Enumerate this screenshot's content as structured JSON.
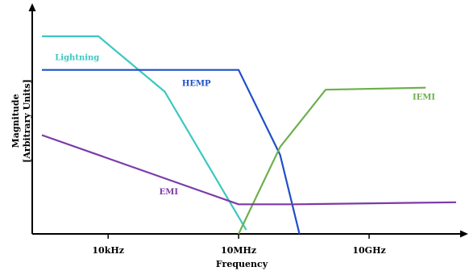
{
  "chart_data": {
    "type": "line",
    "xlabel": "Frequency",
    "ylabel_line1": "Magnitude",
    "ylabel_line2": "[Arbitrary Units]",
    "x_scale": "log",
    "x_ticks": [
      {
        "value": 10000,
        "label": "10kHz"
      },
      {
        "value": 10000000,
        "label": "10MHz"
      },
      {
        "value": 10000000000,
        "label": "10GHz"
      }
    ],
    "xlim": [
      300,
      1000000000000
    ],
    "ylim": [
      0,
      100
    ],
    "grid": false,
    "legend": "none",
    "series": [
      {
        "name": "Lightning",
        "color": "#3cc8c0",
        "points": [
          [
            300,
            100
          ],
          [
            6000,
            100
          ],
          [
            200000,
            72
          ],
          [
            15000000,
            2
          ]
        ],
        "label_at": [
          600,
          88
        ]
      },
      {
        "name": "HEMP",
        "color": "#1f4fc8",
        "points": [
          [
            300,
            83
          ],
          [
            10000000,
            83
          ],
          [
            90000000,
            40
          ],
          [
            250000000,
            0
          ]
        ],
        "label_at": [
          500000,
          75
        ]
      },
      {
        "name": "IEMI",
        "color": "#6cb04c",
        "points": [
          [
            10000000,
            0
          ],
          [
            90000000,
            44
          ],
          [
            1000000000,
            73
          ],
          [
            200000000000,
            74
          ]
        ],
        "label_at": [
          100000000000,
          68
        ]
      },
      {
        "name": "EMI",
        "color": "#7b3aa8",
        "points": [
          [
            300,
            50
          ],
          [
            10000000,
            15
          ],
          [
            200000000,
            15
          ],
          [
            1000000000000,
            16
          ]
        ],
        "label_at": [
          150000,
          20
        ]
      }
    ]
  }
}
